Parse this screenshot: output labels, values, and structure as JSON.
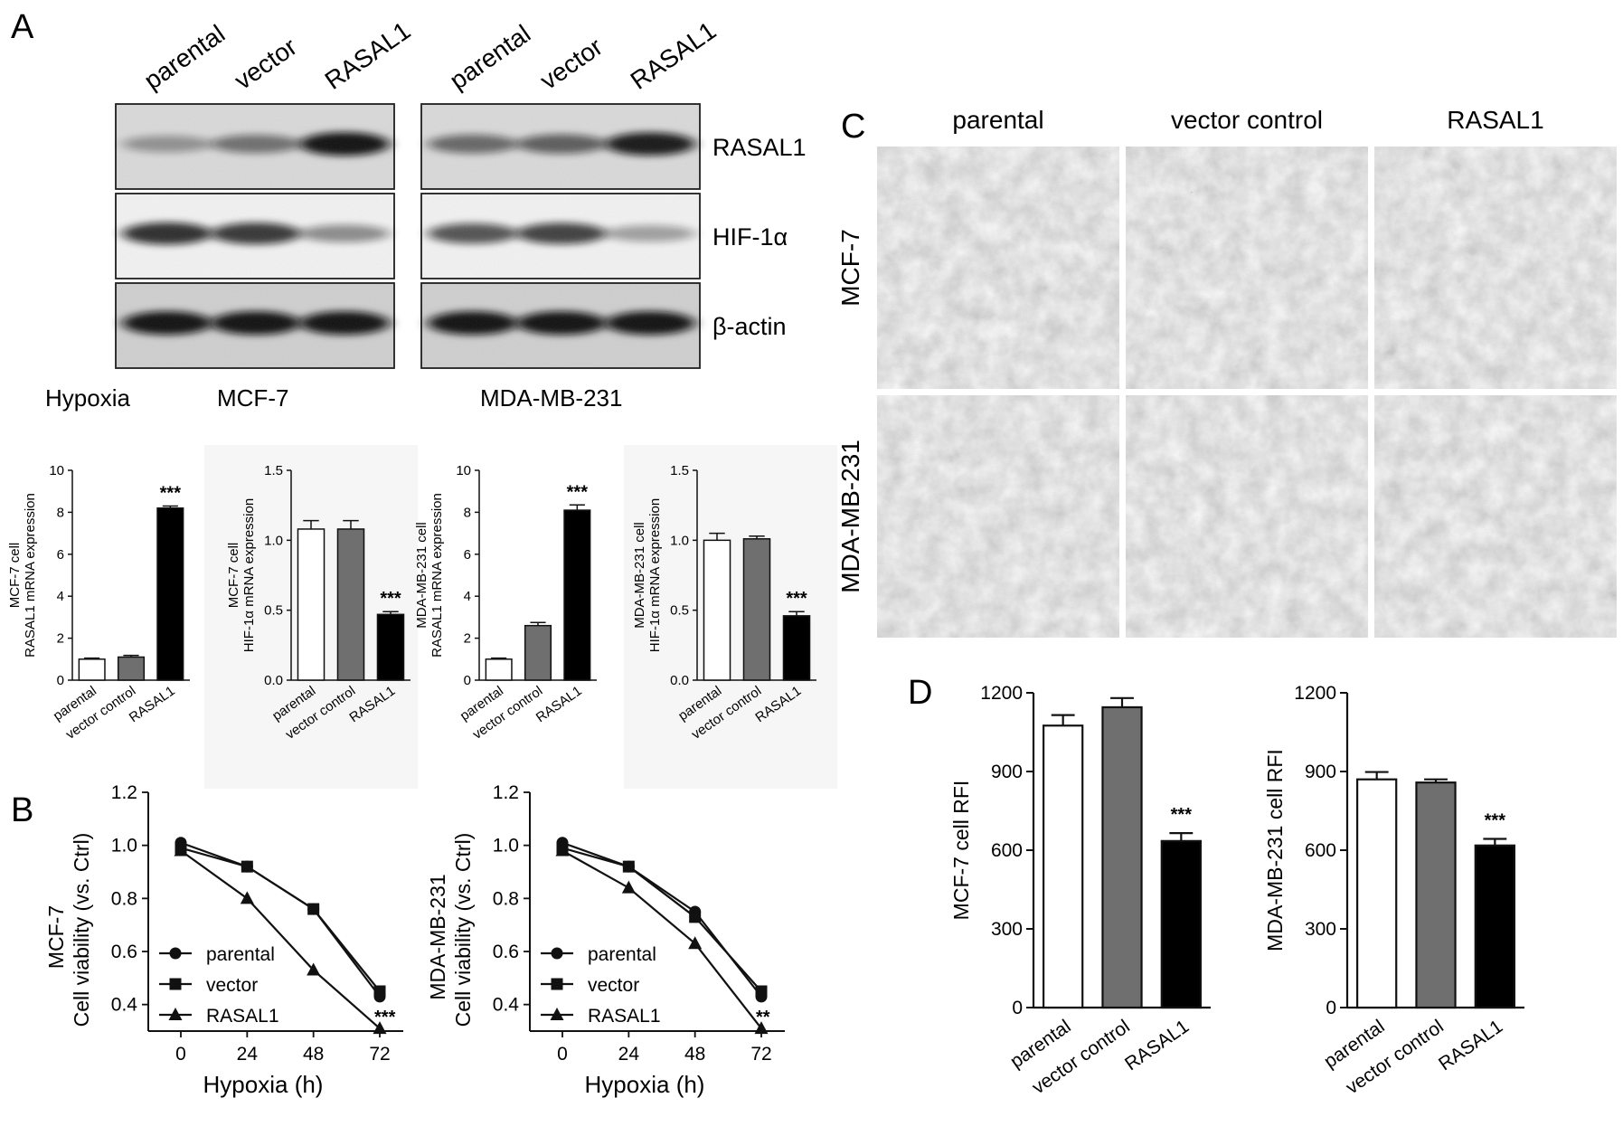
{
  "panels": {
    "a": "A",
    "b": "B",
    "c": "C",
    "d": "D"
  },
  "blot": {
    "lanes": [
      "parental",
      "vector",
      "RASAL1"
    ],
    "bands": [
      "RASAL1",
      "HIF-1α",
      "β-actin"
    ],
    "condition": "Hypoxia",
    "cell_lines": [
      "MCF-7",
      "MDA-MB-231"
    ],
    "intensity": [
      [
        [
          0.25,
          0.45,
          1.0
        ],
        [
          0.85,
          0.8,
          0.35
        ],
        [
          1.0,
          1.0,
          1.0
        ]
      ],
      [
        [
          0.5,
          0.55,
          0.95
        ],
        [
          0.65,
          0.75,
          0.25
        ],
        [
          1.0,
          1.0,
          1.0
        ]
      ]
    ]
  },
  "micrographs": {
    "columns": [
      "parental",
      "vector control",
      "RASAL1"
    ],
    "rows": [
      "MCF-7",
      "MDA-MB-231"
    ]
  },
  "chart_data": [
    {
      "type": "bar",
      "categories": [
        "parental",
        "vector control",
        "RASAL1"
      ],
      "values": [
        1.0,
        1.1,
        8.2
      ],
      "errors": [
        0.05,
        0.08,
        0.1
      ],
      "ylabel": [
        "MCF-7 cell",
        "RASAL1 mRNA expression"
      ],
      "ylim": [
        0,
        10
      ],
      "yticks": [
        0,
        2,
        4,
        6,
        8,
        10
      ],
      "annotations": [
        "",
        "",
        "***"
      ],
      "colors": [
        "#ffffff",
        "#6f6f6f",
        "#000000"
      ]
    },
    {
      "type": "bar",
      "categories": [
        "parental",
        "vector control",
        "RASAL1"
      ],
      "values": [
        1.08,
        1.08,
        0.47
      ],
      "errors": [
        0.06,
        0.06,
        0.02
      ],
      "ylabel": [
        "MCF-7 cell",
        "HIF-1α mRNA expression"
      ],
      "ylim": [
        0,
        1.5
      ],
      "yticks": [
        "0.0",
        "0.5",
        "1.0",
        "1.5"
      ],
      "annotations": [
        "",
        "",
        "***"
      ],
      "colors": [
        "#ffffff",
        "#6f6f6f",
        "#000000"
      ]
    },
    {
      "type": "bar",
      "categories": [
        "parental",
        "vector control",
        "RASAL1"
      ],
      "values": [
        1.0,
        2.6,
        8.1
      ],
      "errors": [
        0.05,
        0.15,
        0.25
      ],
      "ylabel": [
        "MDA-MB-231 cell",
        "RASAL1 mRNA expression"
      ],
      "ylim": [
        0,
        10
      ],
      "yticks": [
        0,
        2,
        4,
        6,
        8,
        10
      ],
      "annotations": [
        "",
        "",
        "***"
      ],
      "colors": [
        "#ffffff",
        "#6f6f6f",
        "#000000"
      ]
    },
    {
      "type": "bar",
      "categories": [
        "parental",
        "vector control",
        "RASAL1"
      ],
      "values": [
        1.0,
        1.01,
        0.46
      ],
      "errors": [
        0.05,
        0.02,
        0.03
      ],
      "ylabel": [
        "MDA-MB-231 cell",
        "HIF-1α mRNA expression"
      ],
      "ylim": [
        0,
        1.5
      ],
      "yticks": [
        "0.0",
        "0.5",
        "1.0",
        "1.5"
      ],
      "annotations": [
        "",
        "",
        "***"
      ],
      "colors": [
        "#ffffff",
        "#6f6f6f",
        "#000000"
      ]
    },
    {
      "type": "line",
      "x": [
        0,
        24,
        48,
        72
      ],
      "series": [
        {
          "name": "parental",
          "values": [
            1.01,
            0.92,
            0.76,
            0.43
          ],
          "marker": "circle"
        },
        {
          "name": "vector",
          "values": [
            0.99,
            0.92,
            0.76,
            0.45
          ],
          "marker": "square"
        },
        {
          "name": "RASAL1",
          "values": [
            0.98,
            0.8,
            0.53,
            0.31
          ],
          "marker": "triangle"
        }
      ],
      "xlabel": "Hypoxia (h)",
      "ylabel": [
        "MCF-7",
        "Cell viability (vs. Ctrl)"
      ],
      "xticks": [
        0,
        24,
        48,
        72
      ],
      "ylim": [
        0.3,
        1.2
      ],
      "yticks": [
        "0.4",
        "0.6",
        "0.8",
        "1.0",
        "1.2"
      ],
      "annotation": "***",
      "legend": "bottom-left"
    },
    {
      "type": "line",
      "x": [
        0,
        24,
        48,
        72
      ],
      "series": [
        {
          "name": "parental",
          "values": [
            1.01,
            0.92,
            0.75,
            0.43
          ],
          "marker": "circle"
        },
        {
          "name": "vector",
          "values": [
            0.99,
            0.92,
            0.73,
            0.45
          ],
          "marker": "square"
        },
        {
          "name": "RASAL1",
          "values": [
            0.98,
            0.84,
            0.63,
            0.31
          ],
          "marker": "triangle"
        }
      ],
      "xlabel": "Hypoxia (h)",
      "ylabel": [
        "MDA-MB-231",
        "Cell viability (vs. Ctrl)"
      ],
      "xticks": [
        0,
        24,
        48,
        72
      ],
      "ylim": [
        0.3,
        1.2
      ],
      "yticks": [
        "0.4",
        "0.6",
        "0.8",
        "1.0",
        "1.2"
      ],
      "annotation": "**",
      "legend": "bottom-left"
    },
    {
      "type": "bar",
      "categories": [
        "parental",
        "vector control",
        "RASAL1"
      ],
      "values": [
        1075,
        1145,
        635
      ],
      "errors": [
        40,
        35,
        30
      ],
      "ylabel": [
        "MCF-7 cell RFI"
      ],
      "ylim": [
        0,
        1200
      ],
      "yticks": [
        0,
        300,
        600,
        900,
        1200
      ],
      "annotations": [
        "",
        "",
        "***"
      ],
      "colors": [
        "#ffffff",
        "#6f6f6f",
        "#000000"
      ]
    },
    {
      "type": "bar",
      "categories": [
        "parental",
        "vector control",
        "RASAL1"
      ],
      "values": [
        870,
        858,
        618
      ],
      "errors": [
        28,
        12,
        25
      ],
      "ylabel": [
        "MDA-MB-231 cell RFI"
      ],
      "ylim": [
        0,
        1200
      ],
      "yticks": [
        0,
        300,
        600,
        900,
        1200
      ],
      "annotations": [
        "",
        "",
        "***"
      ],
      "colors": [
        "#ffffff",
        "#6f6f6f",
        "#000000"
      ]
    }
  ]
}
